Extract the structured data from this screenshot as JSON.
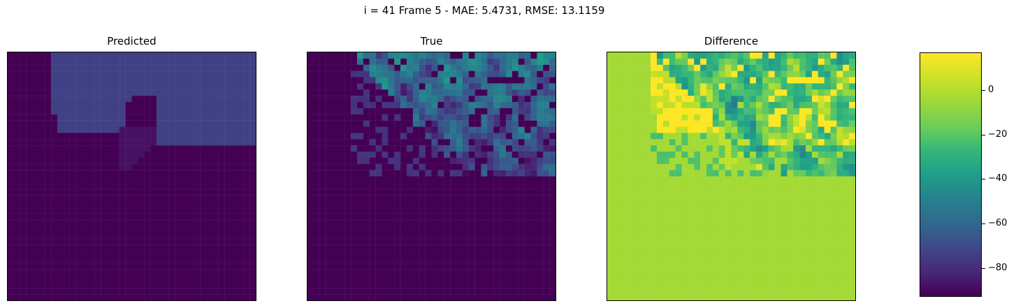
{
  "chart_data": [
    {
      "type": "heatmap",
      "title": "Predicted",
      "grid_size": [
        40,
        40
      ],
      "description_values": {
        "background_value": -93,
        "upper_region_value": -72,
        "upper_region": "top-right plateau with wedge notch, darker lower half"
      }
    },
    {
      "type": "heatmap",
      "title": "True",
      "grid_size": [
        40,
        40
      ],
      "description_values": {
        "background_value": -93,
        "streak_values": [
          -70,
          -50,
          -35,
          -20
        ],
        "streak_region": "diagonal speckled streaks in upper-right"
      }
    },
    {
      "type": "heatmap",
      "title": "Difference",
      "grid_size": [
        40,
        40
      ],
      "description_values": {
        "background_value": 0,
        "range_in_streaks": [
          -80,
          15
        ]
      }
    }
  ],
  "suptitle": "i = 41 Frame 5 - MAE: 5.4731, RMSE: 13.1159",
  "colorbar": {
    "range": [
      -93,
      17
    ],
    "ticks": [
      0,
      -20,
      -40,
      -60,
      -80
    ],
    "colormap": "viridis"
  }
}
